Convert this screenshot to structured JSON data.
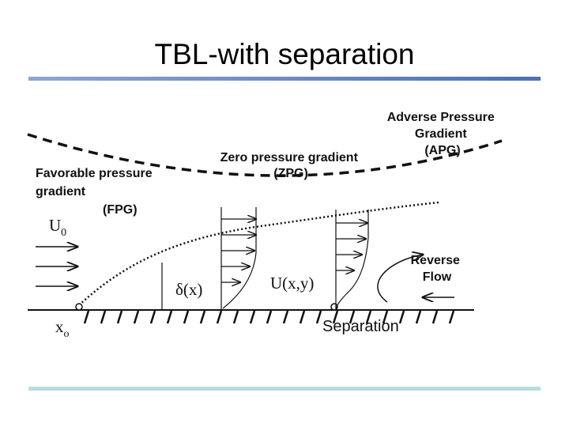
{
  "header": {
    "title": "TBL-with separation"
  },
  "labels": {
    "fpg": [
      "Favorable pressure",
      "gradient",
      "(FPG)"
    ],
    "zpg": [
      "Zero pressure gradient",
      "(ZPG)"
    ],
    "apg": [
      "Adverse Pressure",
      "Gradient",
      "(APG)"
    ],
    "free_stream": {
      "base": "U",
      "sub": "0"
    },
    "origin": {
      "base": "x",
      "sub": "o"
    },
    "thickness": "δ(x)",
    "profile": "U(x,y)",
    "separation": "Separation",
    "reverse_flow": [
      "Reverse",
      "Flow"
    ]
  }
}
